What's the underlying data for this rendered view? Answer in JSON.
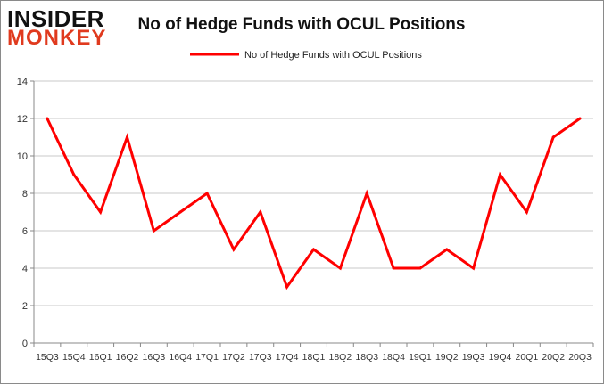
{
  "logo": {
    "line1": "INSIDER",
    "line2": "MONKEY"
  },
  "chart_data": {
    "type": "line",
    "title": "No of Hedge Funds with OCUL Positions",
    "categories": [
      "15Q3",
      "15Q4",
      "16Q1",
      "16Q2",
      "16Q3",
      "16Q4",
      "17Q1",
      "17Q2",
      "17Q3",
      "17Q4",
      "18Q1",
      "18Q2",
      "18Q3",
      "18Q4",
      "19Q1",
      "19Q2",
      "19Q3",
      "19Q4",
      "20Q1",
      "20Q2",
      "20Q3"
    ],
    "series": [
      {
        "name": "No of Hedge Funds with OCUL Positions",
        "color": "#ff0000",
        "values": [
          12,
          9,
          7,
          11,
          6,
          7,
          8,
          5,
          7,
          3,
          5,
          4,
          8,
          4,
          4,
          5,
          4,
          9,
          7,
          11,
          12
        ]
      }
    ],
    "ylim": [
      0,
      14
    ],
    "yticks": [
      0,
      2,
      4,
      6,
      8,
      10,
      12,
      14
    ],
    "grid": true,
    "legend": "top"
  }
}
